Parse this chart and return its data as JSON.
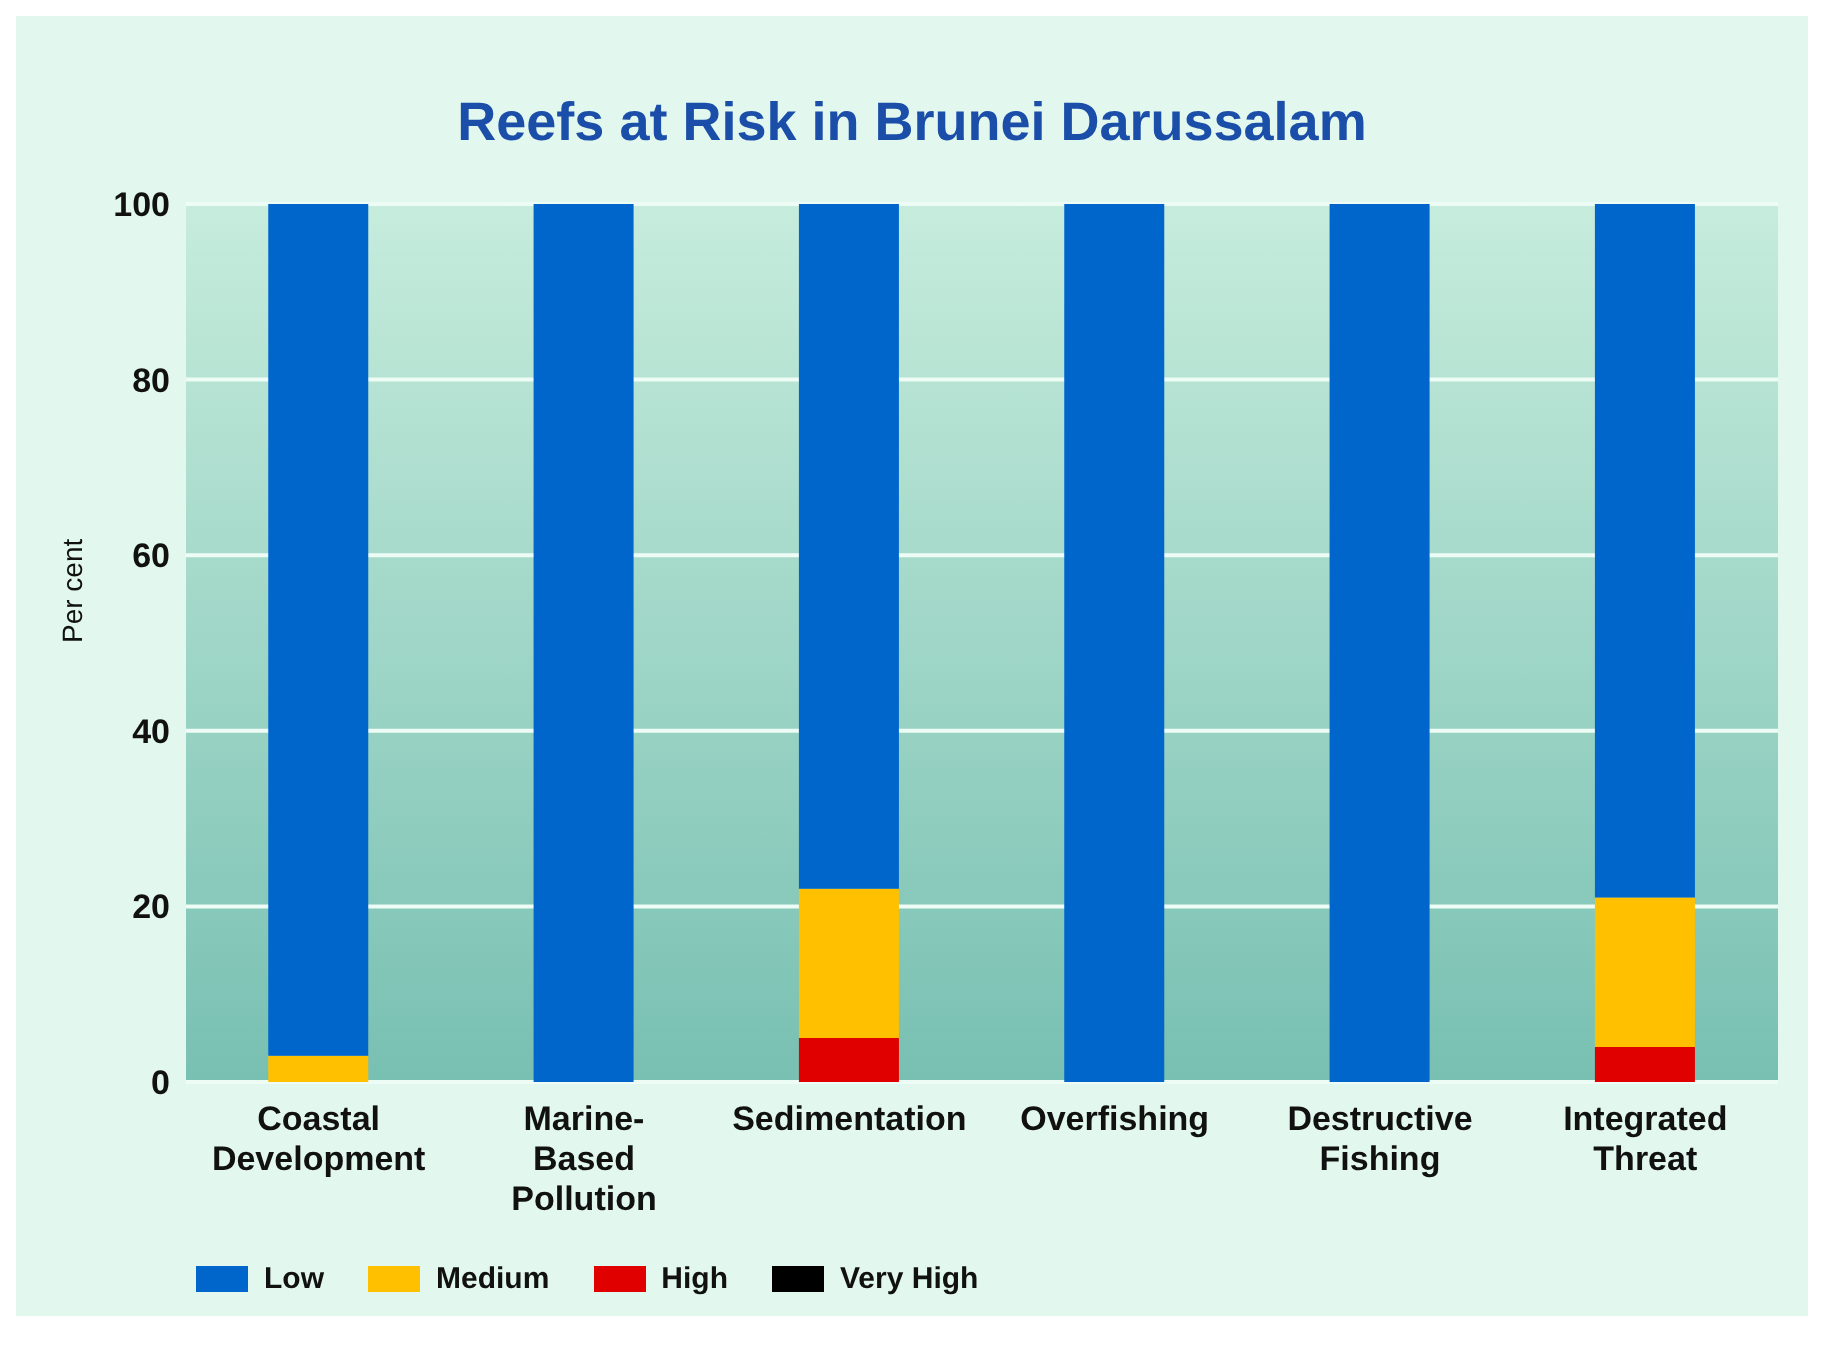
{
  "chart_data": {
    "type": "bar",
    "title": "Reefs at Risk in Brunei Darussalam",
    "ylabel": "Per cent",
    "categories": [
      "Coastal Development",
      "Marine-Based Pollution",
      "Sedimentation",
      "Overfishing",
      "Destructive Fishing",
      "Integrated Threat"
    ],
    "stacked": true,
    "series": [
      {
        "name": "Very High",
        "color": "#000000",
        "values": [
          0,
          0,
          0,
          0,
          0,
          0
        ]
      },
      {
        "name": "High",
        "color": "#e00000",
        "values": [
          0,
          0,
          5,
          0,
          0,
          4
        ]
      },
      {
        "name": "Medium",
        "color": "#ffc000",
        "values": [
          3,
          0,
          17,
          0,
          0,
          17
        ]
      },
      {
        "name": "Low",
        "color": "#0066cc",
        "values": [
          97,
          100,
          78,
          100,
          100,
          79
        ]
      }
    ],
    "ylim": [
      0,
      100
    ],
    "yticks": [
      0,
      20,
      40,
      60,
      80,
      100
    ],
    "grid": "y",
    "legend": "bottom left"
  }
}
